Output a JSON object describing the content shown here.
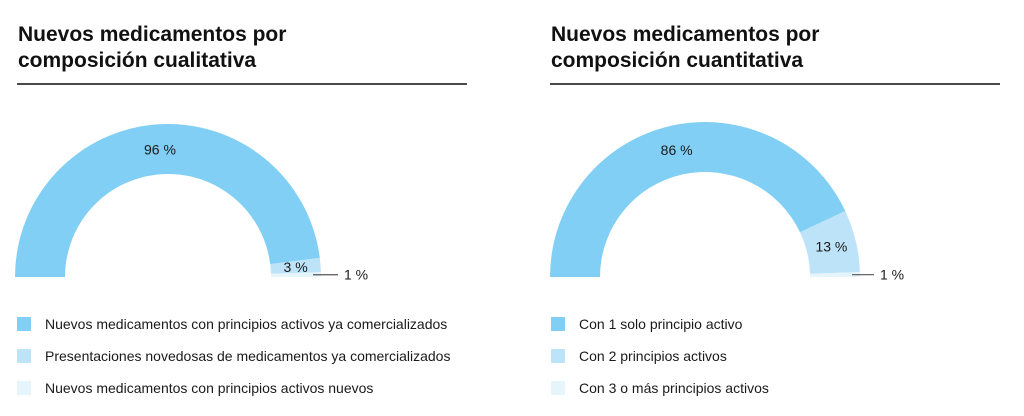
{
  "chart_data": [
    {
      "type": "pie",
      "variant": "half-donut",
      "title": "Nuevos medicamentos por composición cualitativa",
      "title_lines": [
        "Nuevos medicamentos por",
        "composición cualitativa"
      ],
      "unit": "%",
      "legend_position": "bottom",
      "slices": [
        {
          "label": "Nuevos medicamentos con principios activos ya comercializados",
          "value": 96,
          "value_label": "96 %",
          "color": "#81cff4"
        },
        {
          "label": "Presentaciones novedosas de medicamentos ya comercializados",
          "value": 3,
          "value_label": "3 %",
          "color": "#bde3f8"
        },
        {
          "label": "Nuevos medicamentos con principios activos nuevos",
          "value": 1,
          "value_label": "1 %",
          "color": "#e6f4fc"
        }
      ]
    },
    {
      "type": "pie",
      "variant": "half-donut",
      "title": "Nuevos medicamentos por composición cuantitativa",
      "title_lines": [
        "Nuevos medicamentos por",
        "composición cuantitativa"
      ],
      "unit": "%",
      "legend_position": "bottom",
      "slices": [
        {
          "label": "Con 1 solo principio activo",
          "value": 86,
          "value_label": "86 %",
          "color": "#81cff4"
        },
        {
          "label": "Con 2 principios activos",
          "value": 13,
          "value_label": "13 %",
          "color": "#bde3f8"
        },
        {
          "label": "Con 3 o más principios activos",
          "value": 1,
          "value_label": "1 %",
          "color": "#e6f4fc"
        }
      ]
    }
  ],
  "colors": {
    "text": "#1a1a1a",
    "rule": "#4a4a4a",
    "leader_line": "#555555"
  }
}
